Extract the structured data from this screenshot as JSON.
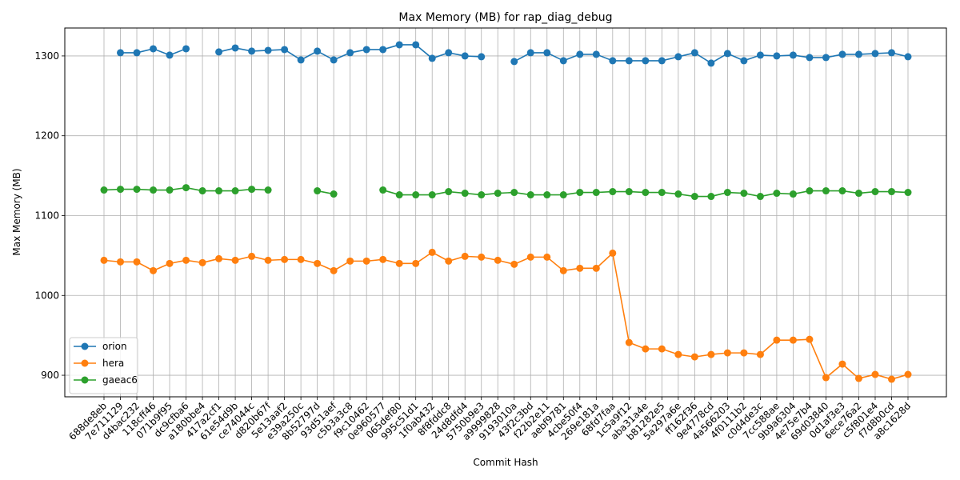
{
  "chart_data": {
    "type": "line",
    "title": "Max Memory (MB) for rap_diag_debug",
    "xlabel": "Commit Hash",
    "ylabel": "Max Memory (MB)",
    "ylim": [
      873,
      1335
    ],
    "yticks": [
      900,
      1000,
      1100,
      1200,
      1300
    ],
    "grid": true,
    "legend_position": "bottom-left",
    "categories": [
      "688de8eb",
      "7e711129",
      "d4bac232",
      "118cff46",
      "071b9f95",
      "dc9cfba6",
      "a180bbe4",
      "417a2cf1",
      "61e54d9b",
      "ce74044c",
      "d820b67f",
      "5e13aaf2",
      "e39a250c",
      "8b52797d",
      "93d51aef",
      "c5b3a3c8",
      "f9c10462",
      "0e960577",
      "065def80",
      "995c51d1",
      "1f0ab432",
      "8f8fddc8",
      "24d8dfd4",
      "5750b9e3",
      "a9999828",
      "9193010a",
      "43f2c3bd",
      "f22b2e11",
      "aebf9781",
      "4cbe50f4",
      "269e181a",
      "68fd7faa",
      "1c5a9f12",
      "aba31a4e",
      "b81282e5",
      "5a297a6e",
      "ff162f36",
      "9e4778cd",
      "4a566203",
      "4f0111b2",
      "c0d4de3c",
      "7cc588ae",
      "9b9a6304",
      "4e75e7b4",
      "69d03840",
      "0d1af3e3",
      "6ece76a2",
      "c5f801e4",
      "f7d8b0cd",
      "a8c1628d"
    ],
    "series": [
      {
        "name": "orion",
        "color": "#1f77b4",
        "values": [
          null,
          1304,
          1304,
          1309,
          1301,
          1309,
          null,
          1305,
          1310,
          1306,
          1307,
          1308,
          1295,
          1306,
          1295,
          1304,
          1308,
          1308,
          1314,
          1314,
          1297,
          1304,
          1300,
          1299,
          null,
          1293,
          1304,
          1304,
          1294,
          1302,
          1302,
          1294,
          1294,
          1294,
          1294,
          1299,
          1304,
          1291,
          1303,
          1294,
          1301,
          1300,
          1301,
          1298,
          1298,
          1302,
          1302,
          1303,
          1304,
          1299
        ]
      },
      {
        "name": "hera",
        "color": "#ff7f0e",
        "values": [
          1044,
          1042,
          1042,
          1031,
          1040,
          1044,
          1041,
          1046,
          1044,
          1049,
          1044,
          1045,
          1045,
          1040,
          1031,
          1043,
          1043,
          1045,
          1040,
          1040,
          1054,
          1043,
          1049,
          1048,
          1044,
          1039,
          1048,
          1048,
          1031,
          1034,
          1034,
          1053,
          941,
          933,
          933,
          926,
          923,
          926,
          928,
          928,
          926,
          944,
          944,
          945,
          897,
          914,
          896,
          901,
          895,
          901
        ]
      },
      {
        "name": "gaeac6",
        "color": "#2ca02c",
        "values": [
          1132,
          1133,
          1133,
          1132,
          1132,
          1135,
          1131,
          1131,
          1131,
          1133,
          1132,
          null,
          null,
          1131,
          1127,
          null,
          null,
          1132,
          1126,
          1126,
          1126,
          1130,
          1128,
          1126,
          1128,
          1129,
          1126,
          1126,
          1126,
          1129,
          1129,
          1130,
          1130,
          1129,
          1129,
          1127,
          1124,
          1124,
          1129,
          1128,
          1124,
          1128,
          1127,
          1131,
          1131,
          1131,
          1128,
          1130,
          1130,
          1129
        ]
      }
    ]
  }
}
